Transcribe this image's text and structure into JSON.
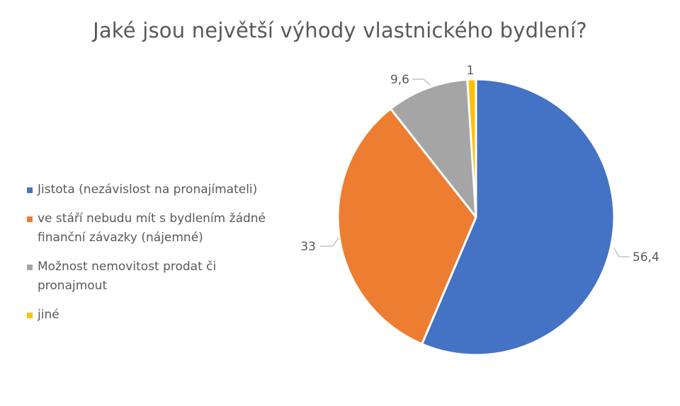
{
  "chart_data": {
    "type": "pie",
    "title": "Jaké jsou největší výhody vlastnického bydlení?",
    "categories": [
      "Jistota  (nezávislost na pronajímateli)",
      "ve stáří nebudu mít s bydlením žádné finanční závazky (nájemné)",
      "Možnost nemovitost prodat či pronajmout",
      "jiné"
    ],
    "values": [
      56.4,
      33,
      9.6,
      1
    ],
    "data_labels": [
      "56,4",
      "33",
      "9,6",
      "1"
    ],
    "colors": [
      "#4472C4",
      "#ED7D31",
      "#A5A5A5",
      "#FFC000"
    ],
    "start_angle": "top, clockwise",
    "legend_position": "left"
  }
}
